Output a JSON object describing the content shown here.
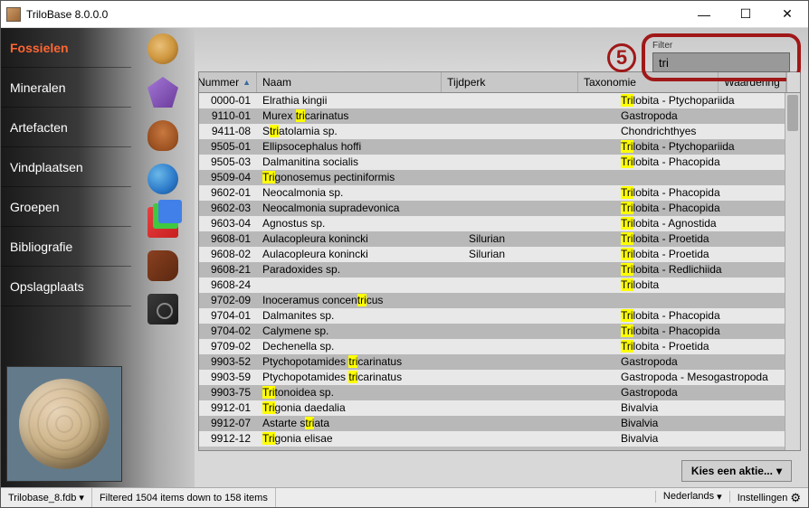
{
  "app": {
    "title": "TriloBase 8.0.0.0"
  },
  "window_controls": {
    "min": "—",
    "max": "☐",
    "close": "✕"
  },
  "sidebar": {
    "items": [
      {
        "label": "Fossielen",
        "active": true
      },
      {
        "label": "Mineralen",
        "active": false
      },
      {
        "label": "Artefacten",
        "active": false
      },
      {
        "label": "Vindplaatsen",
        "active": false
      },
      {
        "label": "Groepen",
        "active": false
      },
      {
        "label": "Bibliografie",
        "active": false
      },
      {
        "label": "Opslagplaats",
        "active": false
      }
    ]
  },
  "filter": {
    "label": "Filter",
    "value": "tri",
    "callout": "5"
  },
  "table": {
    "sort_col": 0,
    "columns": [
      "Nummer",
      "Naam",
      "Tijdperk",
      "Taxonomie",
      "Waardering"
    ],
    "highlight": "tri",
    "rows": [
      {
        "nummer": "0000-01",
        "naam": "Elrathia kingii",
        "tijdperk": "",
        "taxo": "Trilobita - Ptychopariida"
      },
      {
        "nummer": "9110-01",
        "naam": "Murex tricarinatus",
        "tijdperk": "",
        "taxo": "Gastropoda"
      },
      {
        "nummer": "9411-08",
        "naam": "Striatolamia sp.",
        "tijdperk": "",
        "taxo": "Chondrichthyes"
      },
      {
        "nummer": "9505-01",
        "naam": "Ellipsocephalus hoffi",
        "tijdperk": "",
        "taxo": "Trilobita - Ptychopariida"
      },
      {
        "nummer": "9505-03",
        "naam": "Dalmanitina socialis",
        "tijdperk": "",
        "taxo": "Trilobita - Phacopida"
      },
      {
        "nummer": "9509-04",
        "naam": "Trigonosemus pectiniformis",
        "tijdperk": "",
        "taxo": ""
      },
      {
        "nummer": "9602-01",
        "naam": "Neocalmonia sp.",
        "tijdperk": "",
        "taxo": "Trilobita - Phacopida"
      },
      {
        "nummer": "9602-03",
        "naam": "Neocalmonia supradevonica",
        "tijdperk": "",
        "taxo": "Trilobita - Phacopida"
      },
      {
        "nummer": "9603-04",
        "naam": "Agnostus sp.",
        "tijdperk": "",
        "taxo": "Trilobita - Agnostida"
      },
      {
        "nummer": "9608-01",
        "naam": "Aulacopleura konincki",
        "tijdperk": "Silurian",
        "taxo": "Trilobita - Proetida"
      },
      {
        "nummer": "9608-02",
        "naam": "Aulacopleura konincki",
        "tijdperk": "Silurian",
        "taxo": "Trilobita - Proetida"
      },
      {
        "nummer": "9608-21",
        "naam": "Paradoxides sp.",
        "tijdperk": "",
        "taxo": "Trilobita - Redlichiida"
      },
      {
        "nummer": "9608-24",
        "naam": "",
        "tijdperk": "",
        "taxo": "Trilobita"
      },
      {
        "nummer": "9702-09",
        "naam": "Inoceramus concentricus",
        "tijdperk": "",
        "taxo": ""
      },
      {
        "nummer": "9704-01",
        "naam": "Dalmanites sp.",
        "tijdperk": "",
        "taxo": "Trilobita - Phacopida"
      },
      {
        "nummer": "9704-02",
        "naam": "Calymene sp.",
        "tijdperk": "",
        "taxo": "Trilobita - Phacopida"
      },
      {
        "nummer": "9709-02",
        "naam": "Dechenella sp.",
        "tijdperk": "",
        "taxo": "Trilobita - Proetida"
      },
      {
        "nummer": "9903-52",
        "naam": "Ptychopotamides tricarinatus",
        "tijdperk": "",
        "taxo": "Gastropoda"
      },
      {
        "nummer": "9903-59",
        "naam": "Ptychopotamides tricarinatus",
        "tijdperk": "",
        "taxo": "Gastropoda - Mesogastropoda"
      },
      {
        "nummer": "9903-75",
        "naam": "Tritonoidea sp.",
        "tijdperk": "",
        "taxo": "Gastropoda"
      },
      {
        "nummer": "9912-01",
        "naam": "Trigonia daedalia",
        "tijdperk": "",
        "taxo": "Bivalvia"
      },
      {
        "nummer": "9912-07",
        "naam": "Astarte striata",
        "tijdperk": "",
        "taxo": "Bivalvia"
      },
      {
        "nummer": "9912-12",
        "naam": "Trigonia elisae",
        "tijdperk": "",
        "taxo": "Bivalvia"
      }
    ]
  },
  "action": {
    "label": "Kies een aktie...",
    "chev": "▾"
  },
  "status": {
    "file": "Trilobase_8.fdb",
    "filter_info": "Filtered 1504 items down to 158 items",
    "lang": "Nederlands",
    "settings": "Instellingen"
  }
}
